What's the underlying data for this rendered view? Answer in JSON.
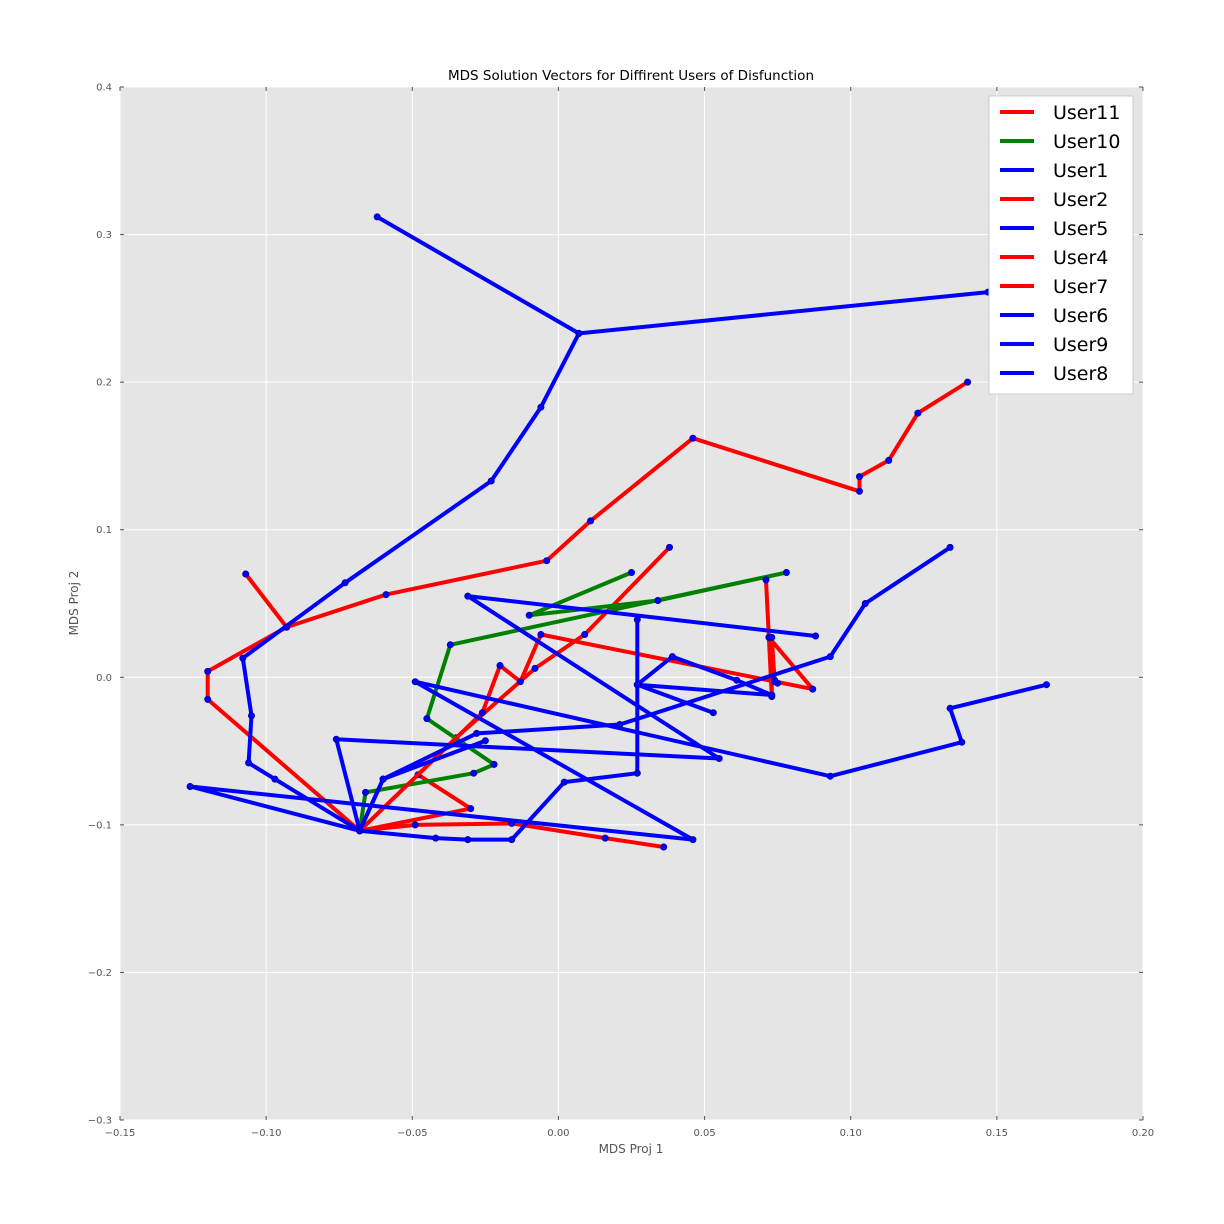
{
  "chart_data": {
    "type": "line",
    "title": "MDS Solution Vectors for Diffirent Users of Disfunction",
    "xlabel": "MDS Proj 1",
    "ylabel": "MDS Proj 2",
    "xlim": [
      -0.15,
      0.2
    ],
    "ylim": [
      -0.3,
      0.4
    ],
    "xticks": [
      -0.15,
      -0.1,
      -0.05,
      0.0,
      0.05,
      0.1,
      0.15,
      0.2
    ],
    "xtick_labels": [
      "−0.15",
      "−0.10",
      "−0.05",
      "0.00",
      "0.05",
      "0.10",
      "0.15",
      "0.20"
    ],
    "yticks": [
      -0.3,
      -0.2,
      -0.1,
      0.0,
      0.1,
      0.2,
      0.3,
      0.4
    ],
    "ytick_labels": [
      "−0.3",
      "−0.2",
      "−0.1",
      "0.0",
      "0.1",
      "0.2",
      "0.3",
      "0.4"
    ],
    "grid": true,
    "legend_position": "top-right",
    "series": [
      {
        "name": "User11",
        "color": "#ff0000",
        "points": [
          [
            0.038,
            0.088
          ],
          [
            0.009,
            0.029
          ],
          [
            -0.008,
            0.006
          ],
          [
            -0.035,
            -0.041
          ],
          [
            -0.048,
            -0.066
          ],
          [
            -0.03,
            -0.089
          ],
          [
            -0.068,
            -0.104
          ],
          [
            -0.049,
            -0.1
          ],
          [
            -0.016,
            -0.099
          ],
          [
            0.016,
            -0.109
          ],
          [
            0.036,
            -0.115
          ]
        ]
      },
      {
        "name": "User10",
        "color": "#008000",
        "points": [
          [
            0.025,
            0.071
          ],
          [
            -0.01,
            0.042
          ],
          [
            0.034,
            0.052
          ],
          [
            0.078,
            0.071
          ],
          [
            -0.037,
            0.022
          ],
          [
            -0.045,
            -0.028
          ],
          [
            -0.022,
            -0.059
          ],
          [
            -0.029,
            -0.065
          ],
          [
            -0.066,
            -0.078
          ],
          [
            -0.068,
            -0.104
          ]
        ]
      },
      {
        "name": "User1",
        "color": "#0000ff",
        "points": [
          [
            -0.062,
            0.312
          ],
          [
            0.007,
            0.233
          ],
          [
            0.147,
            0.261
          ],
          [
            0.167,
            0.262
          ]
        ]
      },
      {
        "name": "User2",
        "color": "#ff0000",
        "points": [
          [
            0.14,
            0.2
          ],
          [
            0.123,
            0.179
          ],
          [
            0.113,
            0.147
          ],
          [
            0.103,
            0.136
          ],
          [
            0.103,
            0.126
          ],
          [
            0.046,
            0.162
          ],
          [
            0.011,
            0.106
          ],
          [
            -0.004,
            0.079
          ],
          [
            -0.059,
            0.056
          ],
          [
            -0.093,
            0.034
          ],
          [
            -0.12,
            0.004
          ],
          [
            -0.12,
            -0.015
          ],
          [
            -0.068,
            -0.104
          ]
        ]
      },
      {
        "name": "User5",
        "color": "#0000ff",
        "points": [
          [
            0.007,
            0.233
          ],
          [
            -0.006,
            0.183
          ],
          [
            -0.023,
            0.133
          ],
          [
            -0.073,
            0.064
          ],
          [
            -0.108,
            0.013
          ],
          [
            -0.105,
            -0.026
          ],
          [
            -0.106,
            -0.058
          ],
          [
            -0.097,
            -0.069
          ],
          [
            -0.068,
            -0.104
          ]
        ]
      },
      {
        "name": "User4",
        "color": "#ff0000",
        "points": [
          [
            -0.107,
            0.07
          ],
          [
            -0.093,
            0.034
          ]
        ]
      },
      {
        "name": "User7",
        "color": "#ff0000",
        "points": [
          [
            -0.068,
            -0.104
          ],
          [
            -0.026,
            -0.024
          ],
          [
            -0.02,
            0.008
          ],
          [
            -0.013,
            -0.003
          ],
          [
            -0.006,
            0.029
          ],
          [
            0.087,
            -0.008
          ],
          [
            0.072,
            0.027
          ],
          [
            0.074,
            -0.002
          ],
          [
            0.075,
            -0.004
          ],
          [
            0.074,
            -0.003
          ],
          [
            0.073,
            0.027
          ],
          [
            0.073,
            -0.013
          ],
          [
            0.071,
            0.066
          ]
        ]
      },
      {
        "name": "User6",
        "color": "#0000ff",
        "points": [
          [
            0.134,
            0.088
          ],
          [
            0.105,
            0.05
          ],
          [
            0.093,
            0.014
          ],
          [
            0.021,
            -0.032
          ],
          [
            -0.028,
            -0.038
          ],
          [
            -0.06,
            -0.069
          ],
          [
            -0.068,
            -0.104
          ],
          [
            -0.076,
            -0.042
          ],
          [
            0.055,
            -0.055
          ],
          [
            -0.031,
            0.055
          ],
          [
            0.088,
            0.028
          ]
        ]
      },
      {
        "name": "User9",
        "color": "#0000ff",
        "points": [
          [
            0.167,
            -0.005
          ],
          [
            0.134,
            -0.021
          ],
          [
            0.138,
            -0.044
          ],
          [
            0.093,
            -0.067
          ],
          [
            -0.049,
            -0.003
          ],
          [
            0.046,
            -0.11
          ],
          [
            -0.126,
            -0.074
          ],
          [
            -0.068,
            -0.104
          ],
          [
            -0.06,
            -0.069
          ],
          [
            -0.025,
            -0.043
          ]
        ]
      },
      {
        "name": "User8",
        "color": "#0000ff",
        "points": [
          [
            0.053,
            -0.024
          ],
          [
            0.027,
            -0.005
          ],
          [
            0.039,
            0.014
          ],
          [
            0.061,
            -0.002
          ],
          [
            0.073,
            -0.012
          ],
          [
            0.027,
            -0.005
          ],
          [
            0.027,
            0.039
          ],
          [
            0.027,
            -0.065
          ],
          [
            0.002,
            -0.071
          ],
          [
            -0.016,
            -0.11
          ],
          [
            -0.031,
            -0.11
          ],
          [
            -0.042,
            -0.109
          ],
          [
            -0.068,
            -0.104
          ]
        ]
      }
    ]
  }
}
